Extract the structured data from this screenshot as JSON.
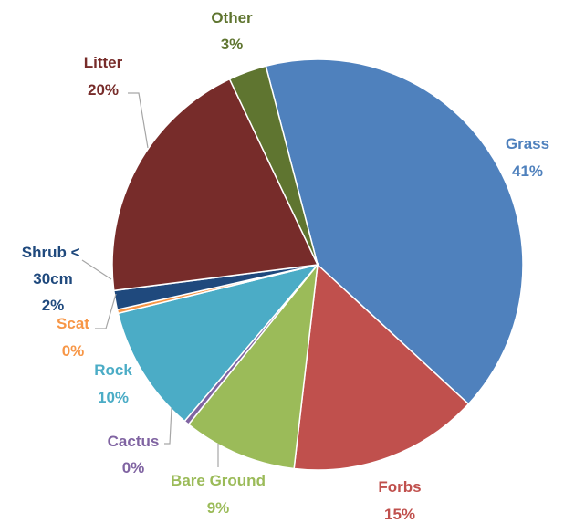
{
  "chart_data": {
    "type": "pie",
    "title": "",
    "legend": "none",
    "slices": [
      {
        "label": "Grass",
        "value": 41,
        "display": "41%",
        "color": "#4F81BD"
      },
      {
        "label": "Forbs",
        "value": 15,
        "display": "15%",
        "color": "#C0504D"
      },
      {
        "label": "Bare Ground",
        "value": 9,
        "display": "9%",
        "color": "#9BBB59"
      },
      {
        "label": "Cactus",
        "value": 0.4,
        "display": "0%",
        "color": "#8064A2"
      },
      {
        "label": "Rock",
        "value": 10,
        "display": "10%",
        "color": "#4BACC6"
      },
      {
        "label": "Scat",
        "value": 0.3,
        "display": "0%",
        "color": "#F79646"
      },
      {
        "label": "Shrub < 30cm",
        "value": 1.5,
        "display": "2%",
        "color": "#1F497D"
      },
      {
        "label": "Litter",
        "value": 20,
        "display": "20%",
        "color": "#772C2A"
      },
      {
        "label": "Other",
        "value": 3,
        "display": "3%",
        "color": "#5F7530"
      }
    ]
  }
}
